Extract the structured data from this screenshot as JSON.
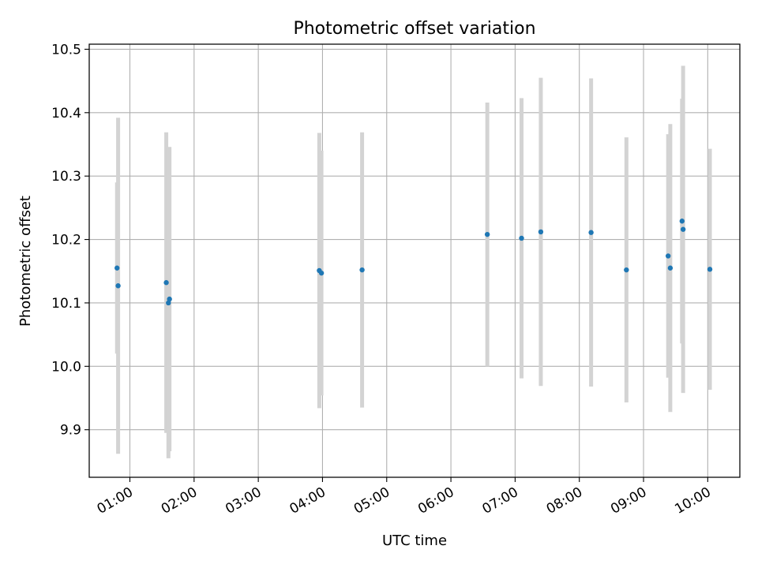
{
  "chart_data": {
    "type": "scatter",
    "title": "Photometric offset variation",
    "xlabel": "UTC time",
    "ylabel": "Photometric offset",
    "x_tick_labels": [
      "01:00",
      "02:00",
      "03:00",
      "04:00",
      "05:00",
      "06:00",
      "07:00",
      "08:00",
      "09:00",
      "10:00"
    ],
    "y_tick_labels": [
      "9.9",
      "10.0",
      "10.1",
      "10.2",
      "10.3",
      "10.4",
      "10.5"
    ],
    "xlim": [
      "00:22",
      "10:30"
    ],
    "ylim": [
      9.825,
      10.508
    ],
    "grid": true,
    "legend": "none",
    "colors": {
      "points": "#1f77b4",
      "error_bars": "#d3d3d3",
      "grid": "#b0b0b0"
    },
    "series": [
      {
        "points": [
          {
            "x": "00:48",
            "y": 10.155,
            "err": 0.135
          },
          {
            "x": "00:49",
            "y": 10.127,
            "err": 0.265
          },
          {
            "x": "01:34",
            "y": 10.132,
            "err": 0.237
          },
          {
            "x": "01:36",
            "y": 10.1,
            "err": 0.245
          },
          {
            "x": "01:37",
            "y": 10.106,
            "err": 0.24
          },
          {
            "x": "03:57",
            "y": 10.151,
            "err": 0.217
          },
          {
            "x": "03:59",
            "y": 10.147,
            "err": 0.193
          },
          {
            "x": "04:37",
            "y": 10.152,
            "err": 0.217
          },
          {
            "x": "06:34",
            "y": 10.208,
            "err": 0.208
          },
          {
            "x": "07:06",
            "y": 10.202,
            "err": 0.221
          },
          {
            "x": "07:24",
            "y": 10.212,
            "err": 0.243
          },
          {
            "x": "08:11",
            "y": 10.211,
            "err": 0.243
          },
          {
            "x": "08:44",
            "y": 10.152,
            "err": 0.209
          },
          {
            "x": "09:23",
            "y": 10.174,
            "err": 0.192
          },
          {
            "x": "09:25",
            "y": 10.155,
            "err": 0.227
          },
          {
            "x": "09:36",
            "y": 10.229,
            "err": 0.193
          },
          {
            "x": "09:37",
            "y": 10.216,
            "err": 0.258
          },
          {
            "x": "10:02",
            "y": 10.153,
            "err": 0.19
          }
        ]
      }
    ]
  }
}
